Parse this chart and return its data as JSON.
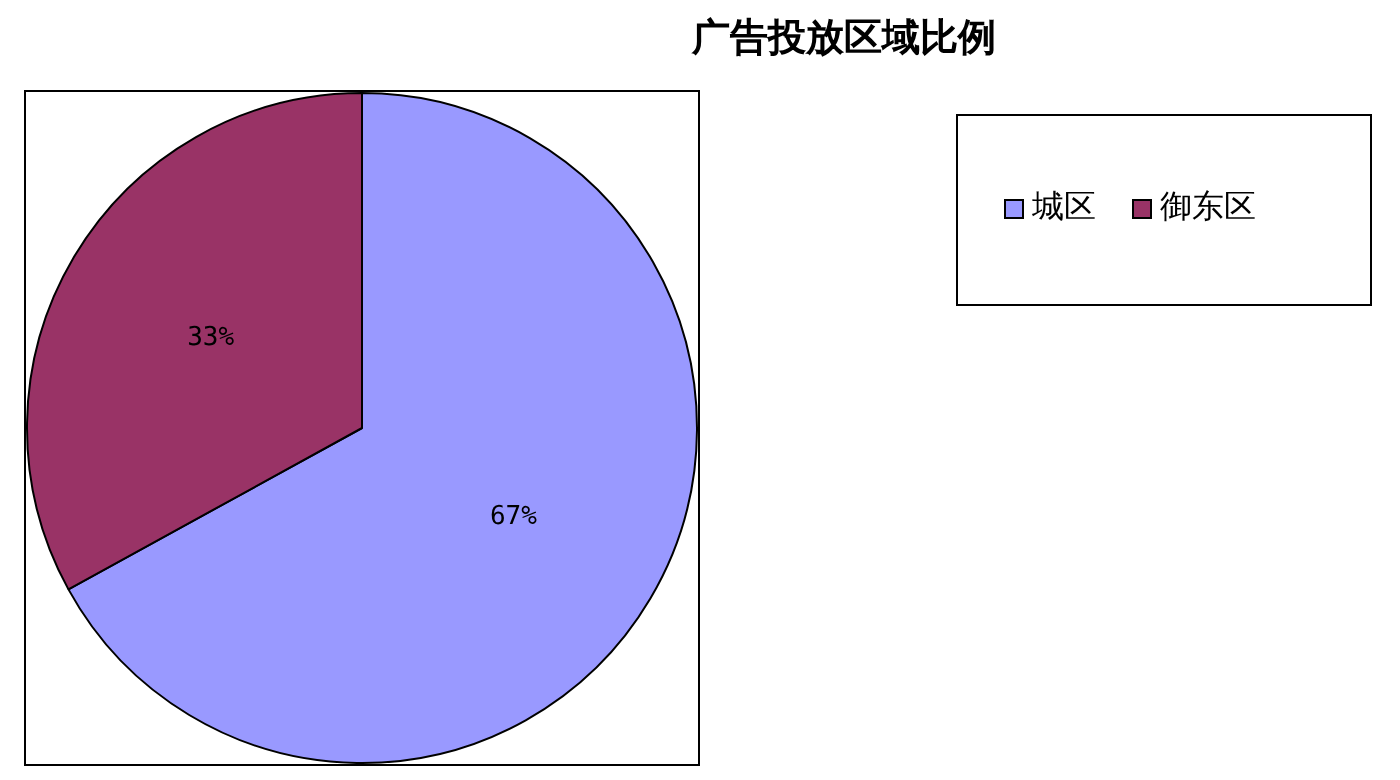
{
  "chart_data": {
    "type": "pie",
    "title": "广告投放区域比例",
    "categories": [
      "城区",
      "御东区"
    ],
    "values": [
      67,
      33
    ],
    "colors": [
      "#9999ff",
      "#993366"
    ],
    "value_labels": [
      "67%",
      "33%"
    ],
    "legend": "top right"
  }
}
